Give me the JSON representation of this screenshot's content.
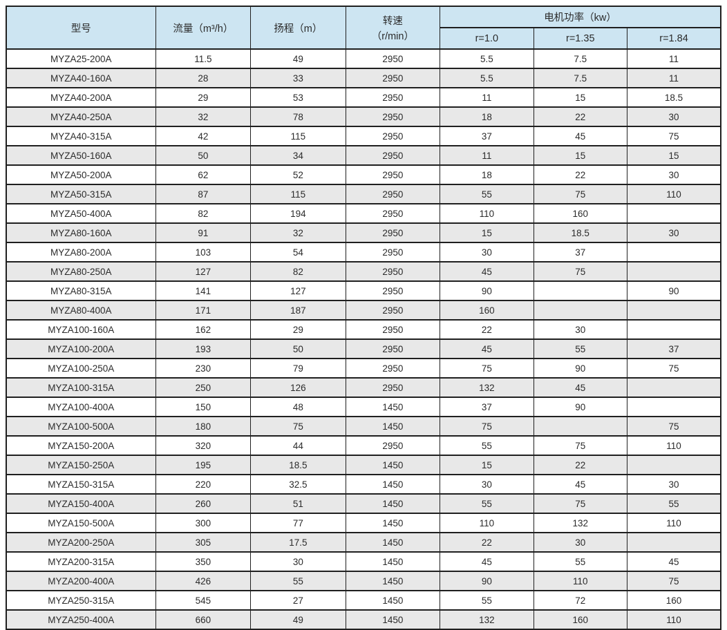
{
  "colors": {
    "header_bg": "#cde5f2",
    "row_alt_bg": "#e8e8e8",
    "row_bg": "#ffffff",
    "border": "#1f1f1f",
    "text": "#2b2b2b"
  },
  "table": {
    "columns": [
      "model",
      "flow",
      "head",
      "speed",
      "power_r1_0",
      "power_r1_35",
      "power_r1_84"
    ],
    "headers": {
      "model": "型号",
      "flow": "流量（m³/h）",
      "head": "扬程（m）",
      "speed_line1": "转速",
      "speed_line2": "（r/min）",
      "power_group": "电机功率（kw）",
      "power_subheaders": [
        "r=1.0",
        "r=1.35",
        "r=1.84"
      ]
    },
    "rows": [
      [
        "MYZA25-200A",
        "11.5",
        "49",
        "2950",
        "5.5",
        "7.5",
        "11"
      ],
      [
        "MYZA40-160A",
        "28",
        "33",
        "2950",
        "5.5",
        "7.5",
        "11"
      ],
      [
        "MYZA40-200A",
        "29",
        "53",
        "2950",
        "11",
        "15",
        "18.5"
      ],
      [
        "MYZA40-250A",
        "32",
        "78",
        "2950",
        "18",
        "22",
        "30"
      ],
      [
        "MYZA40-315A",
        "42",
        "115",
        "2950",
        "37",
        "45",
        "75"
      ],
      [
        "MYZA50-160A",
        "50",
        "34",
        "2950",
        "11",
        "15",
        "15"
      ],
      [
        "MYZA50-200A",
        "62",
        "52",
        "2950",
        "18",
        "22",
        "30"
      ],
      [
        "MYZA50-315A",
        "87",
        "115",
        "2950",
        "55",
        "75",
        "110"
      ],
      [
        "MYZA50-400A",
        "82",
        "194",
        "2950",
        "110",
        "160",
        ""
      ],
      [
        "MYZA80-160A",
        "91",
        "32",
        "2950",
        "15",
        "18.5",
        "30"
      ],
      [
        "MYZA80-200A",
        "103",
        "54",
        "2950",
        "30",
        "37",
        ""
      ],
      [
        "MYZA80-250A",
        "127",
        "82",
        "2950",
        "45",
        "75",
        ""
      ],
      [
        "MYZA80-315A",
        "141",
        "127",
        "2950",
        "90",
        "",
        "90"
      ],
      [
        "MYZA80-400A",
        "171",
        "187",
        "2950",
        "160",
        "",
        ""
      ],
      [
        "MYZA100-160A",
        "162",
        "29",
        "2950",
        "22",
        "30",
        ""
      ],
      [
        "MYZA100-200A",
        "193",
        "50",
        "2950",
        "45",
        "55",
        "37"
      ],
      [
        "MYZA100-250A",
        "230",
        "79",
        "2950",
        "75",
        "90",
        "75"
      ],
      [
        "MYZA100-315A",
        "250",
        "126",
        "2950",
        "132",
        "45",
        ""
      ],
      [
        "MYZA100-400A",
        "150",
        "48",
        "1450",
        "37",
        "90",
        ""
      ],
      [
        "MYZA100-500A",
        "180",
        "75",
        "1450",
        "75",
        "",
        "75"
      ],
      [
        "MYZA150-200A",
        "320",
        "44",
        "2950",
        "55",
        "75",
        "110"
      ],
      [
        "MYZA150-250A",
        "195",
        "18.5",
        "1450",
        "15",
        "22",
        ""
      ],
      [
        "MYZA150-315A",
        "220",
        "32.5",
        "1450",
        "30",
        "45",
        "30"
      ],
      [
        "MYZA150-400A",
        "260",
        "51",
        "1450",
        "55",
        "75",
        "55"
      ],
      [
        "MYZA150-500A",
        "300",
        "77",
        "1450",
        "110",
        "132",
        "110"
      ],
      [
        "MYZA200-250A",
        "305",
        "17.5",
        "1450",
        "22",
        "30",
        ""
      ],
      [
        "MYZA200-315A",
        "350",
        "30",
        "1450",
        "45",
        "55",
        "45"
      ],
      [
        "MYZA200-400A",
        "426",
        "55",
        "1450",
        "90",
        "110",
        "75"
      ],
      [
        "MYZA250-315A",
        "545",
        "27",
        "1450",
        "55",
        "72",
        "160"
      ],
      [
        "MYZA250-400A",
        "660",
        "49",
        "1450",
        "132",
        "160",
        "110"
      ]
    ]
  }
}
